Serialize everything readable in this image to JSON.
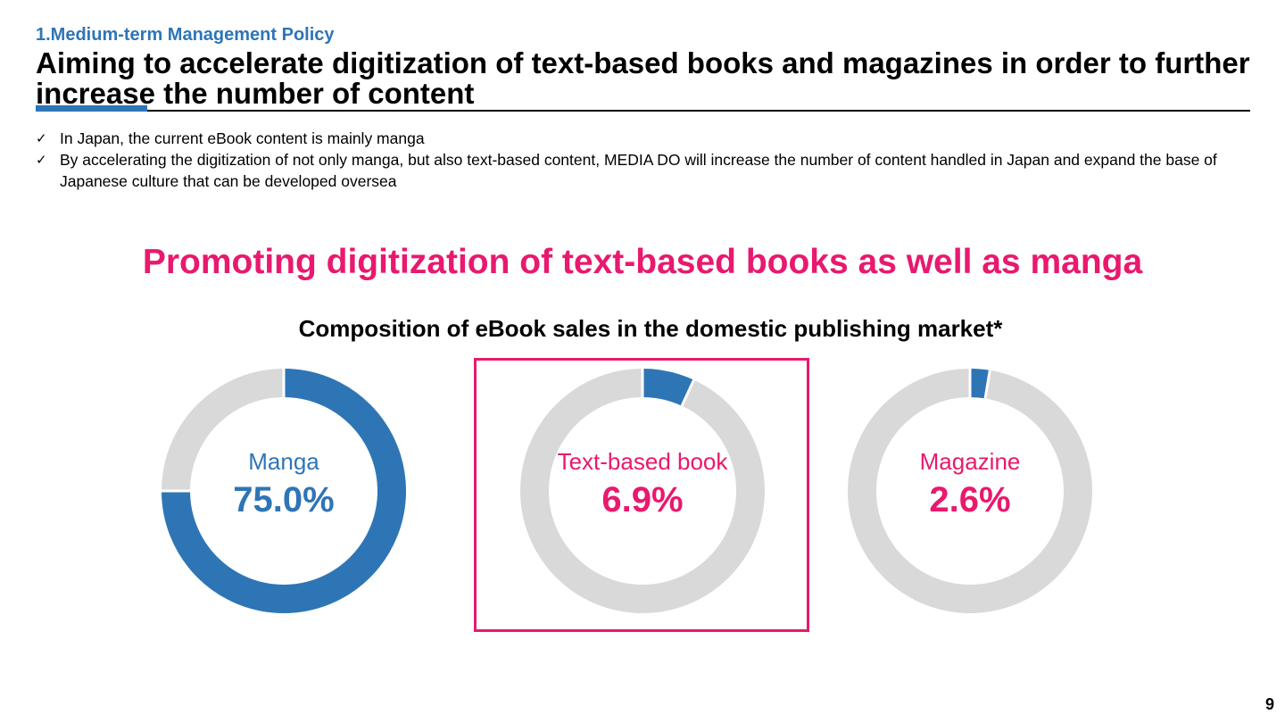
{
  "header": {
    "section_label": "1.Medium-term Management Policy",
    "title": "Aiming to accelerate digitization of text-based books and magazines in order to further increase the number of content"
  },
  "bullets": [
    "In Japan, the current eBook content is mainly manga",
    "By accelerating the digitization of not only manga, but also text-based content, MEDIA DO will increase the number of content handled in Japan and expand the base of Japanese culture that can be developed oversea"
  ],
  "headline": "Promoting digitization of text-based books as well as manga",
  "chart_data": {
    "type": "pie",
    "title": "Composition of eBook sales in the domestic publishing market*",
    "style": "donut",
    "highlighted": "Text-based book",
    "colors": {
      "filled": "#2e75b6",
      "remainder": "#d9d9d9"
    },
    "slices": [
      {
        "name": "Manga",
        "value": 75.0,
        "value_label": "75.0%",
        "label_color": "#2e75b6"
      },
      {
        "name": "Text-based book",
        "value": 6.9,
        "value_label": "6.9%",
        "label_color": "#e8196e"
      },
      {
        "name": "Magazine",
        "value": 2.6,
        "value_label": "2.6%",
        "label_color": "#e8196e"
      }
    ]
  },
  "footer": {
    "page_number": "9"
  }
}
